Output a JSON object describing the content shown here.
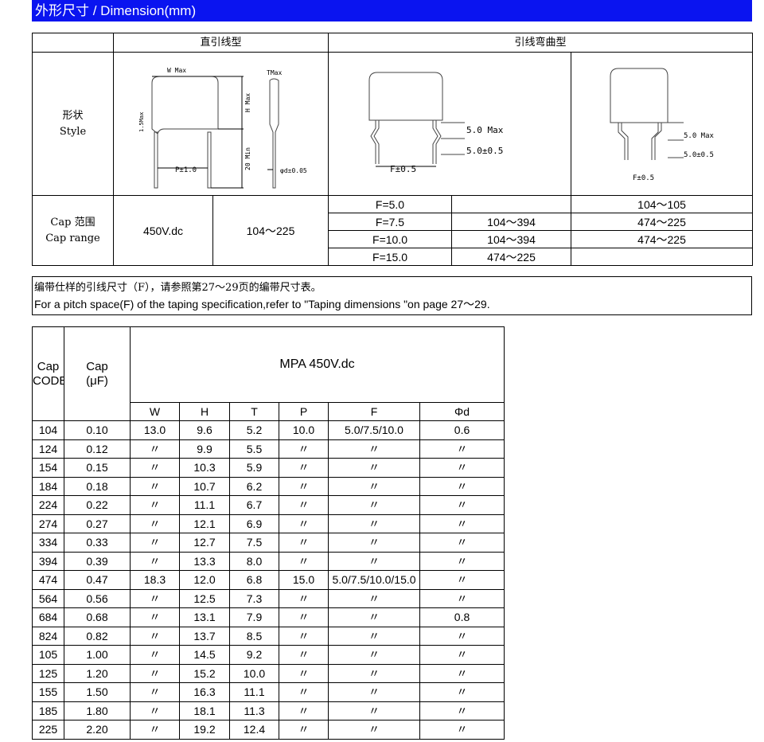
{
  "header": {
    "title": "外形尺寸 / Dimension(mm)",
    "color": "#0a14f0"
  },
  "dimension_table": {
    "col_straight": "直引线型",
    "col_bent": "引线弯曲型",
    "style_label_cn": "形状",
    "style_label_en": "Style",
    "drawing_straight": {
      "w": "W  Max",
      "t": "TMax",
      "h": "H Max",
      "lead_offset": "1.5Max",
      "lead_len": "20 Min",
      "pitch": "P±1.0",
      "dia": "φd±0.05"
    },
    "drawing_bent1": {
      "kink": "5.0 Max",
      "kink2": "5.0±0.5",
      "f": "F±0.5"
    },
    "drawing_bent2": {
      "kink": "5.0 Max",
      "kink2": "5.0±0.5",
      "f": "F±0.5"
    },
    "cap_label_cn": "Cap 范围",
    "cap_label_en": "Cap range",
    "voltage": "450V.dc",
    "straight_range": "104～225",
    "rows": [
      {
        "f": "F=5.0",
        "bent1": "",
        "bent2": "104～105"
      },
      {
        "f": "F=7.5",
        "bent1": "104～394",
        "bent2": "474～225"
      },
      {
        "f": "F=10.0",
        "bent1": "104～394",
        "bent2": "474～225"
      },
      {
        "f": "F=15.0",
        "bent1": "474～225",
        "bent2": ""
      }
    ]
  },
  "note": {
    "cn": "编带仕样的引线尺寸（F），请参照第27～29页的编带尺寸表。",
    "en": "For a pitch space(F) of the taping specification,refer to \"Taping dimensions \"on page 27～29."
  },
  "spec_table": {
    "h_code": "Cap CODE",
    "h_cap": "Cap (μF)",
    "h_series": "MPA 450V.dc",
    "cols": [
      "W",
      "H",
      "T",
      "P",
      "F",
      "Φd"
    ],
    "rows": [
      [
        "104",
        "0.10",
        "13.0",
        "9.6",
        "5.2",
        "10.0",
        "5.0/7.5/10.0",
        "0.6"
      ],
      [
        "124",
        "0.12",
        "〃",
        "9.9",
        "5.5",
        "〃",
        "〃",
        "〃"
      ],
      [
        "154",
        "0.15",
        "〃",
        "10.3",
        "5.9",
        "〃",
        "〃",
        "〃"
      ],
      [
        "184",
        "0.18",
        "〃",
        "10.7",
        "6.2",
        "〃",
        "〃",
        "〃"
      ],
      [
        "224",
        "0.22",
        "〃",
        "11.1",
        "6.7",
        "〃",
        "〃",
        "〃"
      ],
      [
        "274",
        "0.27",
        "〃",
        "12.1",
        "6.9",
        "〃",
        "〃",
        "〃"
      ],
      [
        "334",
        "0.33",
        "〃",
        "12.7",
        "7.5",
        "〃",
        "〃",
        "〃"
      ],
      [
        "394",
        "0.39",
        "〃",
        "13.3",
        "8.0",
        "〃",
        "〃",
        "〃"
      ],
      [
        "474",
        "0.47",
        "18.3",
        "12.0",
        "6.8",
        "15.0",
        "5.0/7.5/10.0/15.0",
        "〃"
      ],
      [
        "564",
        "0.56",
        "〃",
        "12.5",
        "7.3",
        "〃",
        "〃",
        "〃"
      ],
      [
        "684",
        "0.68",
        "〃",
        "13.1",
        "7.9",
        "〃",
        "〃",
        "0.8"
      ],
      [
        "824",
        "0.82",
        "〃",
        "13.7",
        "8.5",
        "〃",
        "〃",
        "〃"
      ],
      [
        "105",
        "1.00",
        "〃",
        "14.5",
        "9.2",
        "〃",
        "〃",
        "〃"
      ],
      [
        "125",
        "1.20",
        "〃",
        "15.2",
        "10.0",
        "〃",
        "〃",
        "〃"
      ],
      [
        "155",
        "1.50",
        "〃",
        "16.3",
        "11.1",
        "〃",
        "〃",
        "〃"
      ],
      [
        "185",
        "1.80",
        "〃",
        "18.1",
        "11.3",
        "〃",
        "〃",
        "〃"
      ],
      [
        "225",
        "2.20",
        "〃",
        "19.2",
        "12.4",
        "〃",
        "〃",
        "〃"
      ]
    ]
  }
}
